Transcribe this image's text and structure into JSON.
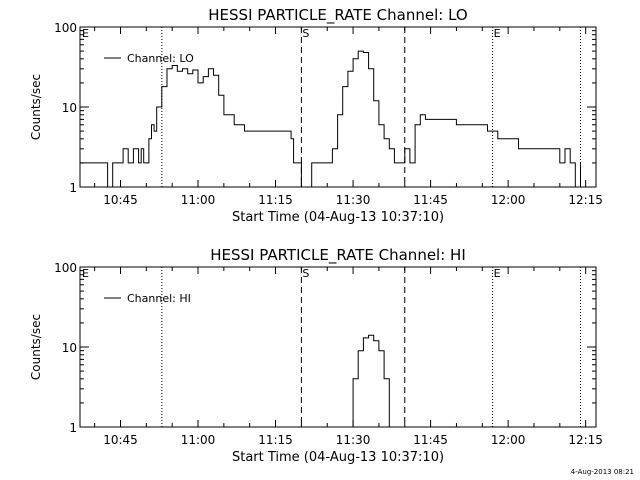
{
  "footer": {
    "timestamp": "4-Aug-2013 08:21"
  },
  "chart_data": [
    {
      "type": "line",
      "title": "HESSI PARTICLE_RATE Channel: LO",
      "xlabel": "Start Time (04-Aug-13 10:37:10)",
      "ylabel": "Counts/sec",
      "y_scale": "log",
      "xlim": [
        "10:37:10",
        "12:17:00"
      ],
      "ylim": [
        1,
        100
      ],
      "x_ticks": [
        "10:45",
        "11:00",
        "11:15",
        "11:30",
        "11:45",
        "12:00",
        "12:15"
      ],
      "y_ticks": [
        "1",
        "10",
        "100"
      ],
      "legend": {
        "position": "top-left",
        "entries": [
          "Channel: LO"
        ]
      },
      "grid": false,
      "markers": [
        {
          "label": "E",
          "time": "10:37:10",
          "style": "dotted"
        },
        {
          "time": "10:53:00",
          "style": "dotted"
        },
        {
          "label": "S",
          "time": "11:20:00",
          "style": "dashed"
        },
        {
          "time": "11:40:00",
          "style": "dashed"
        },
        {
          "label": "E",
          "time": "11:57:00",
          "style": "dotted"
        },
        {
          "time": "12:14:00",
          "style": "dotted"
        }
      ],
      "series": [
        {
          "name": "Channel: LO",
          "x": [
            "10:37:10",
            "10:42:00",
            "10:42:30",
            "10:43:30",
            "10:44:00",
            "10:44:30",
            "10:45:30",
            "10:46:30",
            "10:47:00",
            "10:47:30",
            "10:48:30",
            "10:49:00",
            "10:49:30",
            "10:50:00",
            "10:50:30",
            "10:51:00",
            "10:51:30",
            "10:52:00",
            "10:53:00",
            "10:54:00",
            "10:55:00",
            "10:56:00",
            "10:57:00",
            "10:58:00",
            "10:59:00",
            "11:00:00",
            "11:01:00",
            "11:02:00",
            "11:03:00",
            "11:04:00",
            "11:05:00",
            "11:07:00",
            "11:09:00",
            "11:11:00",
            "11:13:00",
            "11:15:00",
            "11:17:00",
            "11:18:00",
            "11:18:30",
            "11:19:00",
            "11:20:00",
            "11:22:00",
            "11:24:00",
            "11:25:00",
            "11:26:00",
            "11:27:00",
            "11:28:00",
            "11:29:00",
            "11:30:00",
            "11:31:00",
            "11:32:00",
            "11:33:00",
            "11:34:00",
            "11:35:00",
            "11:36:00",
            "11:37:00",
            "11:38:00",
            "11:39:00",
            "11:40:00",
            "11:41:00",
            "11:42:00",
            "11:43:00",
            "11:44:00",
            "11:46:00",
            "11:48:00",
            "11:50:00",
            "11:52:00",
            "11:54:00",
            "11:56:00",
            "11:57:00",
            "11:58:00",
            "12:00:00",
            "12:02:00",
            "12:04:00",
            "12:06:00",
            "12:08:00",
            "12:10:00",
            "12:11:00",
            "12:12:00",
            "12:13:00",
            "12:14:00"
          ],
          "values": [
            2,
            2,
            1,
            2,
            2,
            2,
            3,
            2,
            2,
            3,
            2,
            3,
            2,
            2,
            4,
            6,
            5,
            10,
            18,
            30,
            33,
            28,
            30,
            26,
            29,
            20,
            24,
            30,
            25,
            14,
            8,
            6,
            5,
            5,
            5,
            5,
            5,
            4,
            2,
            2,
            1,
            2,
            2,
            2,
            3,
            8,
            18,
            28,
            40,
            50,
            48,
            30,
            12,
            6,
            4,
            3,
            2,
            2,
            3,
            2,
            6,
            8,
            7,
            7,
            7,
            6,
            6,
            6,
            5,
            5,
            4,
            4,
            3,
            3,
            3,
            3,
            2,
            3,
            2,
            1,
            2
          ]
        }
      ]
    },
    {
      "type": "line",
      "title": "HESSI PARTICLE_RATE Channel: HI",
      "xlabel": "Start Time (04-Aug-13 10:37:10)",
      "ylabel": "Counts/sec",
      "y_scale": "log",
      "xlim": [
        "10:37:10",
        "12:17:00"
      ],
      "ylim": [
        1,
        100
      ],
      "x_ticks": [
        "10:45",
        "11:00",
        "11:15",
        "11:30",
        "11:45",
        "12:00",
        "12:15"
      ],
      "y_ticks": [
        "1",
        "10",
        "100"
      ],
      "legend": {
        "position": "top-left",
        "entries": [
          "Channel: HI"
        ]
      },
      "grid": false,
      "markers": [
        {
          "label": "E",
          "time": "10:37:10",
          "style": "dotted"
        },
        {
          "time": "10:53:00",
          "style": "dotted"
        },
        {
          "label": "S",
          "time": "11:20:00",
          "style": "dashed"
        },
        {
          "time": "11:40:00",
          "style": "dashed"
        },
        {
          "label": "E",
          "time": "11:57:00",
          "style": "dotted"
        },
        {
          "time": "12:14:00",
          "style": "dotted"
        }
      ],
      "series": [
        {
          "name": "Channel: HI",
          "x": [
            "11:29:00",
            "11:30:00",
            "11:31:00",
            "11:32:00",
            "11:33:00",
            "11:34:00",
            "11:35:00",
            "11:36:00",
            "11:37:00"
          ],
          "values": [
            1,
            4,
            9,
            13,
            14,
            12,
            9,
            4,
            1
          ]
        }
      ]
    }
  ]
}
